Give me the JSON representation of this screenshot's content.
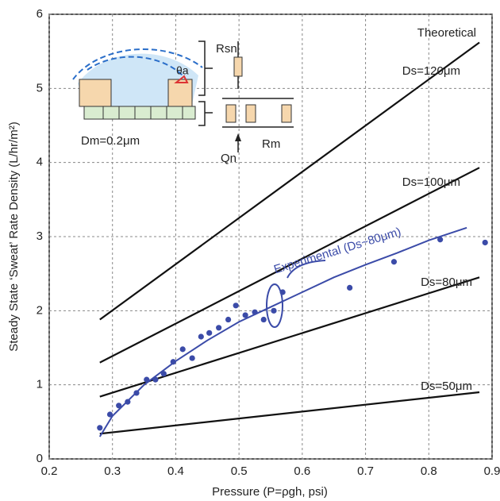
{
  "chart_data": {
    "type": "line",
    "xlabel": "Pressure (P=ρgh, psi)",
    "ylabel": "Steady State ‘Sweat’ Rate Density (L/hr/m²)",
    "xlim": [
      0.2,
      0.9
    ],
    "ylim": [
      0,
      6
    ],
    "xticks": [
      0.2,
      0.3,
      0.4,
      0.5,
      0.6,
      0.7,
      0.8,
      0.9
    ],
    "yticks": [
      0,
      1,
      2,
      3,
      4,
      5,
      6
    ],
    "grid": true,
    "annotation": "Theoretical",
    "series": [
      {
        "name": "Ds=120μm",
        "color": "#111111",
        "x": [
          0.28,
          0.88
        ],
        "values": [
          1.88,
          5.62
        ]
      },
      {
        "name": "Ds=100μm",
        "color": "#111111",
        "x": [
          0.28,
          0.88
        ],
        "values": [
          1.3,
          3.93
        ]
      },
      {
        "name": "Ds=80μm",
        "color": "#111111",
        "x": [
          0.28,
          0.88
        ],
        "values": [
          0.84,
          2.45
        ]
      },
      {
        "name": "Ds=50μm",
        "color": "#111111",
        "x": [
          0.28,
          0.88
        ],
        "values": [
          0.34,
          0.9
        ]
      },
      {
        "name": "Experimental (Ds~80μm)",
        "color": "#3b4ba8",
        "x": [
          0.28,
          0.3,
          0.35,
          0.4,
          0.45,
          0.5,
          0.55,
          0.6,
          0.65,
          0.7,
          0.75,
          0.8,
          0.86
        ],
        "values": [
          0.3,
          0.58,
          1.0,
          1.32,
          1.6,
          1.85,
          2.05,
          2.25,
          2.45,
          2.62,
          2.78,
          2.95,
          3.12
        ]
      }
    ],
    "points": {
      "color": "#3b4ba8",
      "x": [
        0.28,
        0.296,
        0.31,
        0.324,
        0.338,
        0.354,
        0.368,
        0.381,
        0.396,
        0.411,
        0.426,
        0.44,
        0.453,
        0.468,
        0.483,
        0.495,
        0.51,
        0.525,
        0.539,
        0.555,
        0.569,
        0.675,
        0.745,
        0.818,
        0.889
      ],
      "values": [
        0.42,
        0.6,
        0.72,
        0.77,
        0.89,
        1.07,
        1.07,
        1.15,
        1.31,
        1.48,
        1.36,
        1.65,
        1.7,
        1.77,
        1.88,
        2.07,
        1.94,
        1.98,
        1.88,
        2.0,
        2.25,
        2.31,
        2.66,
        2.96,
        2.92
      ]
    }
  },
  "inset": {
    "labels": [
      "θa",
      "Rsn",
      "Dm=0.2μm",
      "Qn",
      "Rm"
    ]
  }
}
